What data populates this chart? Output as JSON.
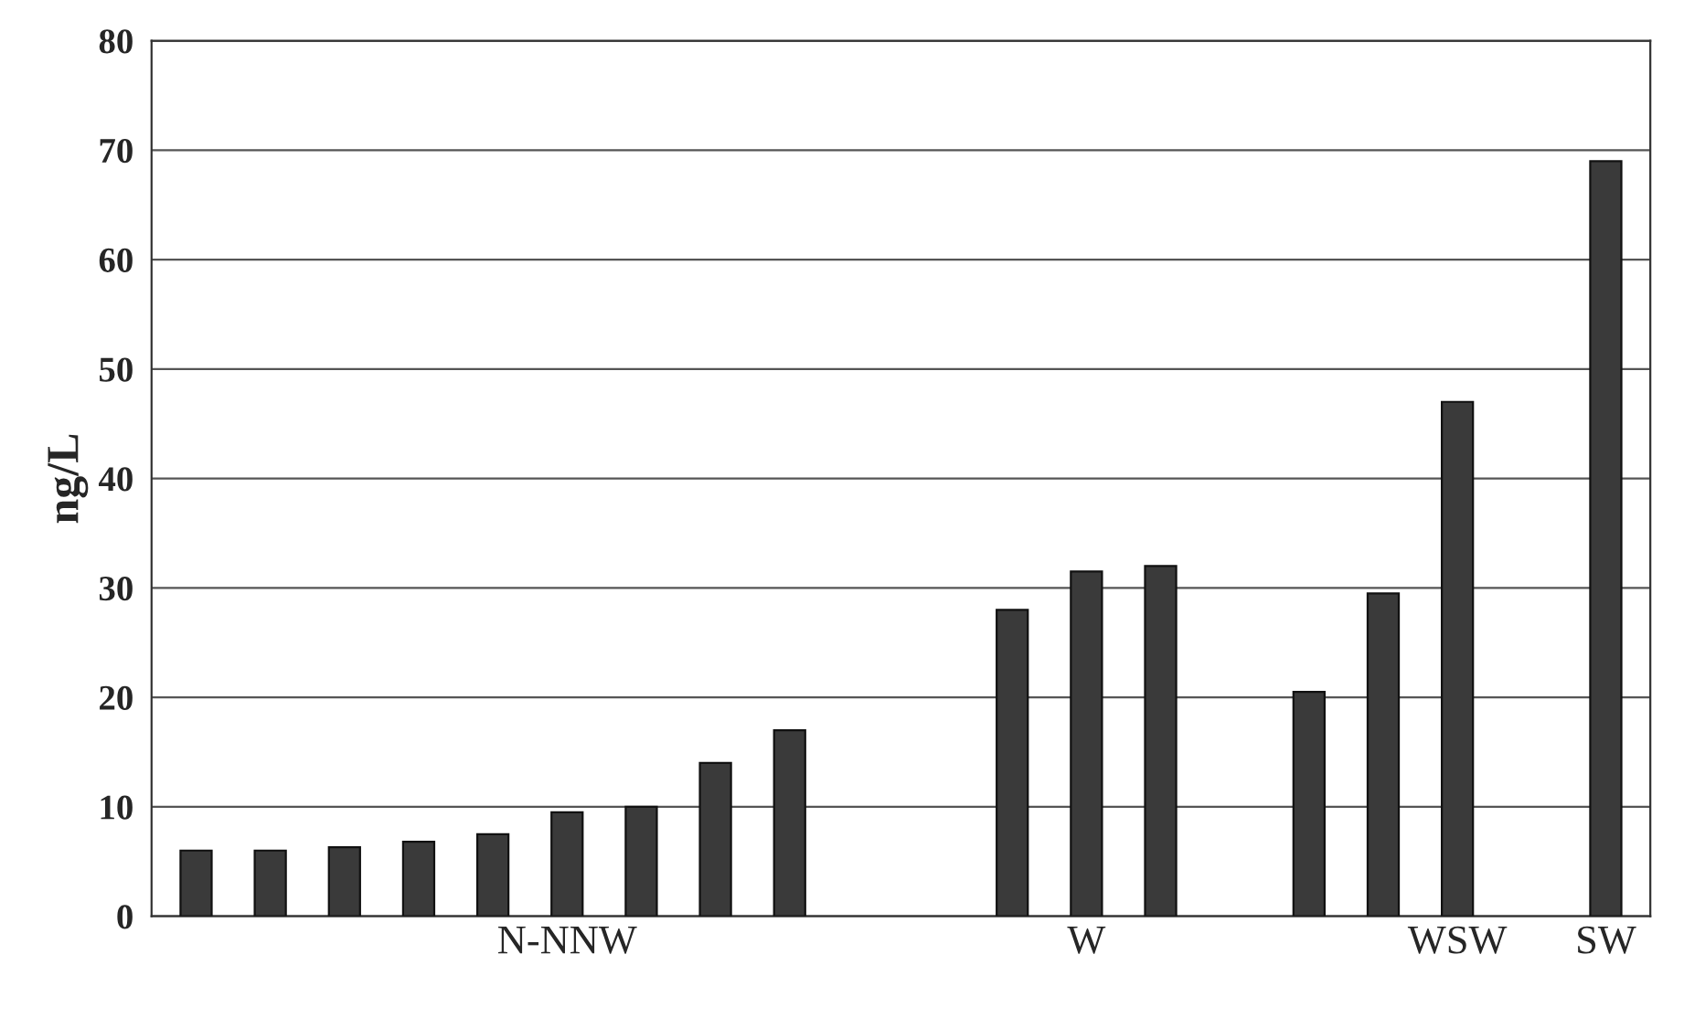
{
  "chart_data": {
    "type": "bar",
    "ylabel": "ng/L",
    "categories": [
      null,
      null,
      null,
      null,
      null,
      "N-NNW",
      null,
      null,
      null,
      null,
      null,
      null,
      "W",
      null,
      null,
      null,
      null,
      "WSW",
      null,
      "SW"
    ],
    "values": [
      6,
      6,
      6.3,
      6.8,
      7.5,
      9.5,
      10,
      14,
      17,
      null,
      null,
      28,
      31.5,
      32,
      null,
      20.5,
      29.5,
      47,
      null,
      69
    ],
    "color": "#3a3a3a",
    "ylim": [
      0,
      80
    ],
    "yticks": [
      0,
      10,
      20,
      30,
      40,
      50,
      60,
      70,
      80
    ],
    "grid": "y"
  }
}
